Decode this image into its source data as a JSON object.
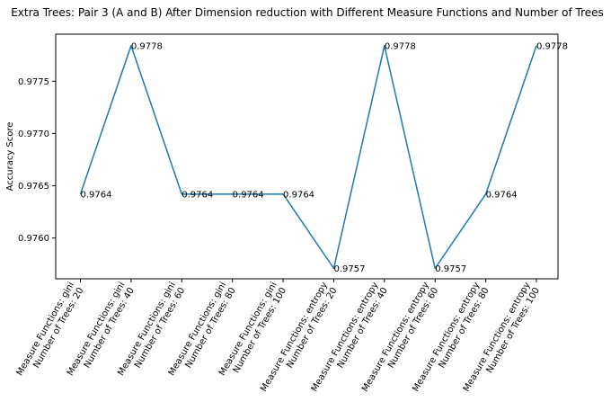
{
  "chart_data": {
    "type": "line",
    "title": "Extra Trees: Pair 3 (A and B) After Dimension reduction with Different Measure Functions and Number of Trees",
    "xlabel": "",
    "ylabel": "Accuracy Score",
    "ylim": [
      0.97561,
      0.97795
    ],
    "yticks": [
      0.976,
      0.9765,
      0.977,
      0.9775
    ],
    "ytick_labels": [
      "0.9760",
      "0.9765",
      "0.9770",
      "0.9775"
    ],
    "categories": [
      [
        "Measure Functions: gini",
        "Number of Trees: 20"
      ],
      [
        "Measure Functions: gini",
        "Number of Trees: 40"
      ],
      [
        "Measure Functions: gini",
        "Number of Trees: 60"
      ],
      [
        "Measure Functions: gini",
        "Number of Trees: 80"
      ],
      [
        "Measure Functions: gini",
        "Number of Trees: 100"
      ],
      [
        "Measure Functions: entropy",
        "Number of Trees: 20"
      ],
      [
        "Measure Functions: entropy",
        "Number of Trees: 40"
      ],
      [
        "Measure Functions: entropy",
        "Number of Trees: 60"
      ],
      [
        "Measure Functions: entropy",
        "Number of Trees: 80"
      ],
      [
        "Measure Functions: entropy",
        "Number of Trees: 100"
      ]
    ],
    "values": [
      0.97642,
      0.97784,
      0.97642,
      0.97642,
      0.97642,
      0.97571,
      0.97784,
      0.97571,
      0.97642,
      0.97784
    ],
    "value_labels": [
      "0.9764",
      "0.9778",
      "0.9764",
      "0.9764",
      "0.9764",
      "0.9757",
      "0.9778",
      "0.9757",
      "0.9764",
      "0.9778"
    ],
    "line_color": "#1f77b4",
    "grid": false,
    "legend": "none"
  }
}
